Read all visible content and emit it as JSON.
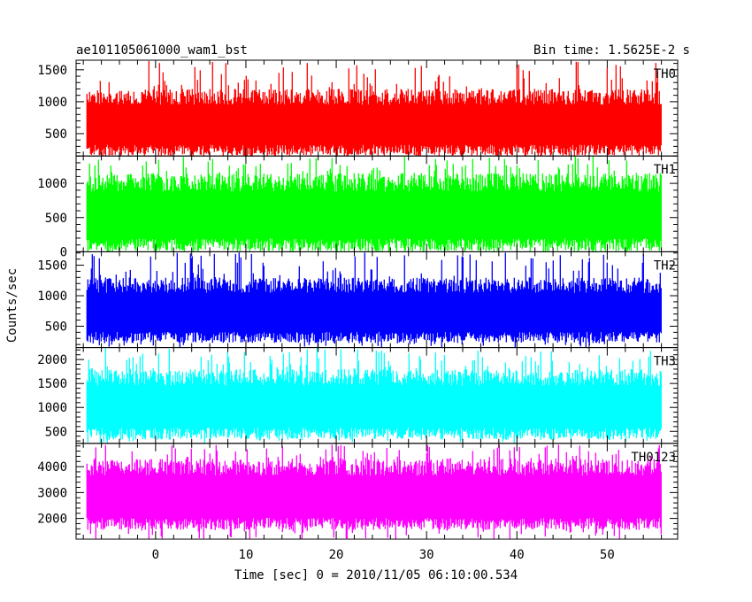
{
  "chart_data": {
    "type": "line",
    "title": "ae101105061000_wam1_bst",
    "subtitle": "Bin time: 1.5625E-2 s",
    "xlabel": "Time [sec] 0 = 2010/11/05 06:10:00.534",
    "ylabel": "Counts/sec",
    "xlim": [
      -8.8,
      57.8
    ],
    "x_ticks": [
      0,
      10,
      20,
      30,
      40,
      50
    ],
    "x_data_range": [
      -7.6,
      56.0
    ],
    "grid": false,
    "panels": [
      {
        "name": "TH0",
        "color": "#ff0000",
        "ylim": [
          150,
          1650
        ],
        "y_ticks": [
          500,
          1000,
          1500
        ],
        "typical_low": 200,
        "typical_high": 1200,
        "extreme_high": 1640
      },
      {
        "name": "TH1",
        "color": "#00ff00",
        "ylim": [
          0,
          1400
        ],
        "y_ticks": [
          0,
          500,
          1000
        ],
        "typical_low": 60,
        "typical_high": 1150,
        "extreme_high": 1400
      },
      {
        "name": "TH2",
        "color": "#0000ff",
        "ylim": [
          150,
          1720
        ],
        "y_ticks": [
          500,
          1000,
          1500
        ],
        "typical_low": 280,
        "typical_high": 1300,
        "extreme_high": 1720
      },
      {
        "name": "TH3",
        "color": "#00ffff",
        "ylim": [
          250,
          2250
        ],
        "y_ticks": [
          500,
          1000,
          1500,
          2000
        ],
        "typical_low": 400,
        "typical_high": 1800,
        "extreme_high": 2250
      },
      {
        "name": "TH0123",
        "color": "#ff00ff",
        "ylim": [
          1200,
          4900
        ],
        "y_ticks": [
          2000,
          3000,
          4000
        ],
        "typical_low": 1700,
        "typical_high": 4300,
        "extreme_high": 4850
      }
    ]
  }
}
